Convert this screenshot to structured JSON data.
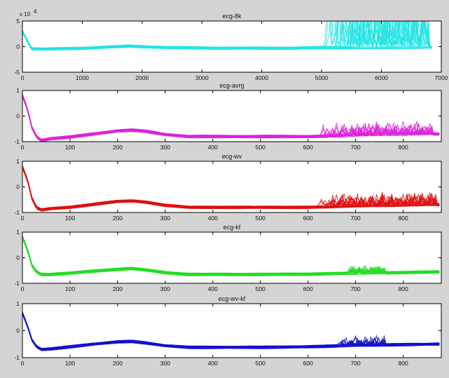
{
  "figure": {
    "background": "#d4d4d4",
    "axes_background": "#ffffff",
    "axes_color": "#000000"
  },
  "chart_data": [
    {
      "type": "line",
      "title": "ecg-8k",
      "color": "#22e4e4",
      "xlim": [
        0,
        7000
      ],
      "ylim": [
        -5,
        5
      ],
      "y_exponent_label": "x 10",
      "y_exponent": "4",
      "xticks": [
        0,
        1000,
        2000,
        3000,
        4000,
        5000,
        6000,
        7000
      ],
      "yticks": [
        -5,
        0,
        5
      ],
      "n_traces": 20,
      "series": [
        {
          "x": [
            0,
            150,
            350,
            1000,
            1800,
            2500,
            3500,
            4500,
            5000,
            6000,
            6800
          ],
          "y": [
            3,
            -0.4,
            -0.5,
            -0.3,
            0.1,
            -0.2,
            -0.3,
            -0.3,
            -0.2,
            -0.2,
            -0.1
          ]
        }
      ],
      "spikes": {
        "x_start": 4950,
        "x_end": 6800,
        "amp_min": 1.0,
        "amp_max": 3.0
      }
    },
    {
      "type": "line",
      "title": "ecg-avrg",
      "color": "#dd22dd",
      "xlim": [
        0,
        880
      ],
      "ylim": [
        -1,
        1
      ],
      "xticks": [
        0,
        100,
        200,
        300,
        400,
        500,
        600,
        700,
        800
      ],
      "yticks": [
        -1,
        0,
        1
      ],
      "n_traces": 20,
      "series": [
        {
          "x": [
            0,
            10,
            20,
            30,
            40,
            60,
            100,
            150,
            200,
            230,
            260,
            300,
            350,
            400,
            500,
            600,
            700,
            800,
            870
          ],
          "y": [
            0.8,
            0.3,
            -0.45,
            -0.82,
            -0.95,
            -0.88,
            -0.82,
            -0.7,
            -0.58,
            -0.55,
            -0.6,
            -0.72,
            -0.8,
            -0.8,
            -0.8,
            -0.8,
            -0.76,
            -0.72,
            -0.7
          ]
        }
      ],
      "spikes": {
        "x_start": 620,
        "x_end": 860,
        "amp_min": 0.15,
        "amp_max": 0.55
      }
    },
    {
      "type": "line",
      "title": "ecg-wv",
      "color": "#dd1111",
      "xlim": [
        0,
        880
      ],
      "ylim": [
        -1,
        1
      ],
      "xticks": [
        0,
        100,
        200,
        300,
        400,
        500,
        600,
        700,
        800
      ],
      "yticks": [
        -1,
        0,
        1
      ],
      "n_traces": 20,
      "series": [
        {
          "x": [
            0,
            10,
            20,
            30,
            40,
            60,
            100,
            150,
            200,
            230,
            260,
            300,
            350,
            400,
            500,
            600,
            700,
            800,
            870
          ],
          "y": [
            0.78,
            0.3,
            -0.45,
            -0.82,
            -0.9,
            -0.85,
            -0.8,
            -0.68,
            -0.57,
            -0.55,
            -0.6,
            -0.72,
            -0.8,
            -0.8,
            -0.8,
            -0.8,
            -0.76,
            -0.72,
            -0.7
          ]
        }
      ],
      "spikes": {
        "x_start": 620,
        "x_end": 870,
        "amp_min": 0.15,
        "amp_max": 0.55
      }
    },
    {
      "type": "line",
      "title": "ecg-kf",
      "color": "#22dd22",
      "xlim": [
        0,
        880
      ],
      "ylim": [
        -1,
        1
      ],
      "xticks": [
        0,
        100,
        200,
        300,
        400,
        500,
        600,
        700,
        800
      ],
      "yticks": [
        -1,
        0,
        1
      ],
      "n_traces": 20,
      "series": [
        {
          "x": [
            0,
            10,
            20,
            30,
            40,
            60,
            100,
            150,
            200,
            230,
            260,
            300,
            350,
            400,
            500,
            600,
            700,
            800,
            870
          ],
          "y": [
            0.8,
            0.35,
            -0.3,
            -0.55,
            -0.65,
            -0.65,
            -0.6,
            -0.52,
            -0.45,
            -0.42,
            -0.48,
            -0.58,
            -0.65,
            -0.65,
            -0.65,
            -0.64,
            -0.6,
            -0.58,
            -0.55
          ]
        }
      ],
      "spikes": {
        "x_start": 680,
        "x_end": 760,
        "amp_min": 0.1,
        "amp_max": 0.3
      }
    },
    {
      "type": "line",
      "title": "ecg-wv-kf",
      "color": "#1111cc",
      "xlim": [
        0,
        880
      ],
      "ylim": [
        -1,
        1
      ],
      "xticks": [
        0,
        100,
        200,
        300,
        400,
        500,
        600,
        700,
        800
      ],
      "yticks": [
        -1,
        0,
        1
      ],
      "n_traces": 20,
      "series": [
        {
          "x": [
            0,
            10,
            20,
            30,
            40,
            60,
            100,
            150,
            200,
            230,
            260,
            300,
            350,
            400,
            500,
            600,
            700,
            800,
            870
          ],
          "y": [
            0.65,
            0.2,
            -0.35,
            -0.6,
            -0.7,
            -0.68,
            -0.6,
            -0.5,
            -0.42,
            -0.4,
            -0.46,
            -0.56,
            -0.62,
            -0.62,
            -0.62,
            -0.6,
            -0.55,
            -0.52,
            -0.5
          ]
        }
      ],
      "spikes": {
        "x_start": 660,
        "x_end": 760,
        "amp_min": 0.1,
        "amp_max": 0.35
      }
    }
  ]
}
